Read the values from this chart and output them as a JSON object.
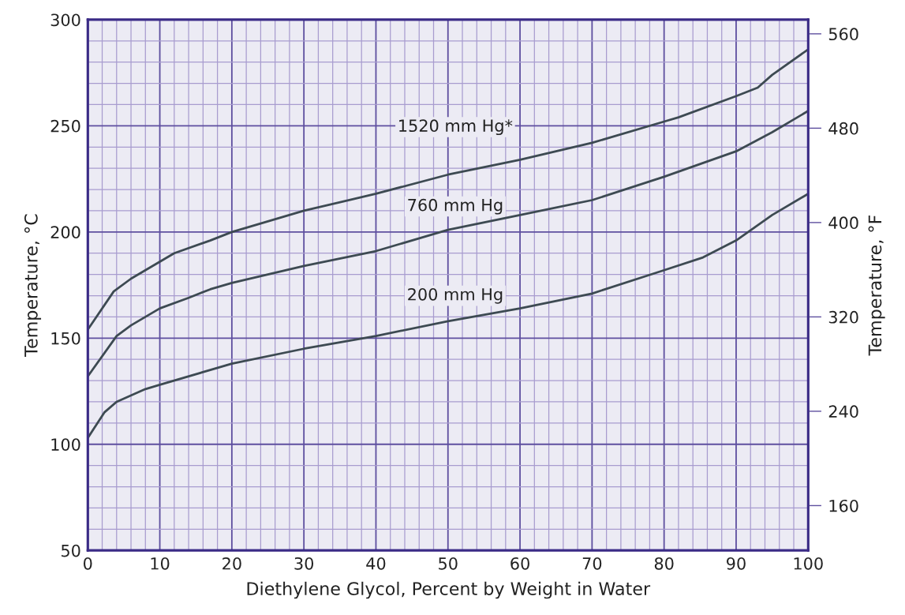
{
  "chart_data": {
    "type": "line",
    "xlabel": "Diethylene Glycol, Percent by Weight in Water",
    "ylabel": "Temperature, °C",
    "y2label": "Temperature, °F",
    "series": [
      {
        "name": "1520 mm Hg*",
        "color": "#3d4a52",
        "x": [
          0,
          3.6,
          6,
          10,
          12,
          17,
          20,
          30,
          40,
          50,
          60,
          70,
          80,
          82,
          90,
          93,
          95,
          100
        ],
        "values": [
          154,
          172,
          178,
          186,
          190,
          196,
          200,
          210,
          218,
          227,
          234,
          242,
          252,
          254,
          264,
          268,
          274,
          286
        ]
      },
      {
        "name": "760 mm Hg",
        "color": "#3d4a52",
        "x": [
          0,
          4,
          6,
          10,
          14,
          17,
          20,
          30,
          40,
          50,
          60,
          70,
          80,
          90,
          95,
          100
        ],
        "values": [
          132,
          151,
          156,
          164,
          169,
          173,
          176,
          184,
          191,
          201,
          208,
          215,
          226,
          238,
          247,
          257
        ]
      },
      {
        "name": "200 mm Hg",
        "color": "#3d4a52",
        "x": [
          0,
          2.3,
          4,
          8,
          10,
          17,
          20,
          30,
          40,
          50,
          60,
          70,
          80,
          85.4,
          90,
          95,
          100
        ],
        "values": [
          103,
          115,
          120,
          126,
          128,
          135,
          138,
          145,
          151,
          158,
          164,
          171,
          182,
          188,
          196,
          208,
          218
        ]
      }
    ],
    "xlim": [
      0,
      100
    ],
    "ylim": [
      50,
      300
    ],
    "y2lim": [
      122,
      572
    ],
    "xticks": [
      0,
      {
        "value": 2,
        "label": null
      },
      {
        "value": 4,
        "label": null
      },
      {
        "value": 6,
        "label": null
      },
      {
        "value": 8,
        "label": null
      },
      10,
      {
        "value": 12,
        "label": null
      },
      {
        "value": 14,
        "label": null
      },
      {
        "value": 16,
        "label": null
      },
      {
        "value": 18,
        "label": null
      },
      20,
      {
        "value": 22,
        "label": null
      },
      {
        "value": 24,
        "label": null
      },
      {
        "value": 26,
        "label": null
      },
      {
        "value": 28,
        "label": null
      },
      30,
      {
        "value": 32,
        "label": null
      },
      {
        "value": 34,
        "label": null
      },
      {
        "value": 36,
        "label": null
      },
      {
        "value": 38,
        "label": null
      },
      40,
      {
        "value": 42,
        "label": null
      },
      {
        "value": 44,
        "label": null
      },
      {
        "value": 46,
        "label": null
      },
      {
        "value": 48,
        "label": null
      },
      50,
      {
        "value": 52,
        "label": null
      },
      {
        "value": 54,
        "label": null
      },
      {
        "value": 56,
        "label": null
      },
      {
        "value": 58,
        "label": null
      },
      60,
      {
        "value": 62,
        "label": null
      },
      {
        "value": 64,
        "label": null
      },
      {
        "value": 66,
        "label": null
      },
      {
        "value": 68,
        "label": null
      },
      70,
      {
        "value": 72,
        "label": null
      },
      {
        "value": 74,
        "label": null
      },
      {
        "value": 76,
        "label": null
      },
      {
        "value": 78,
        "label": null
      },
      80,
      {
        "value": 82,
        "label": null
      },
      {
        "value": 84,
        "label": null
      },
      {
        "value": 86,
        "label": null
      },
      {
        "value": 88,
        "label": null
      },
      90,
      {
        "value": 92,
        "label": null
      },
      {
        "value": 94,
        "label": null
      },
      {
        "value": 96,
        "label": null
      },
      {
        "value": 98,
        "label": null
      },
      100
    ],
    "yticks": [
      50,
      {
        "value": 60,
        "label": null
      },
      {
        "value": 70,
        "label": null
      },
      {
        "value": 80,
        "label": null
      },
      {
        "value": 90,
        "label": null
      },
      100,
      {
        "value": 110,
        "label": null
      },
      {
        "value": 120,
        "label": null
      },
      {
        "value": 130,
        "label": null
      },
      {
        "value": 140,
        "label": null
      },
      150,
      {
        "value": 160,
        "label": null
      },
      {
        "value": 170,
        "label": null
      },
      {
        "value": 180,
        "label": null
      },
      {
        "value": 190,
        "label": null
      },
      200,
      {
        "value": 210,
        "label": null
      },
      {
        "value": 220,
        "label": null
      },
      {
        "value": 230,
        "label": null
      },
      {
        "value": 240,
        "label": null
      },
      250,
      {
        "value": 260,
        "label": null
      },
      {
        "value": 270,
        "label": null
      },
      {
        "value": 280,
        "label": null
      },
      {
        "value": 290,
        "label": null
      },
      300
    ],
    "y2ticks": [
      160,
      240,
      320,
      400,
      480,
      560
    ],
    "grid": true,
    "marker": "none",
    "line_style": "solid"
  }
}
